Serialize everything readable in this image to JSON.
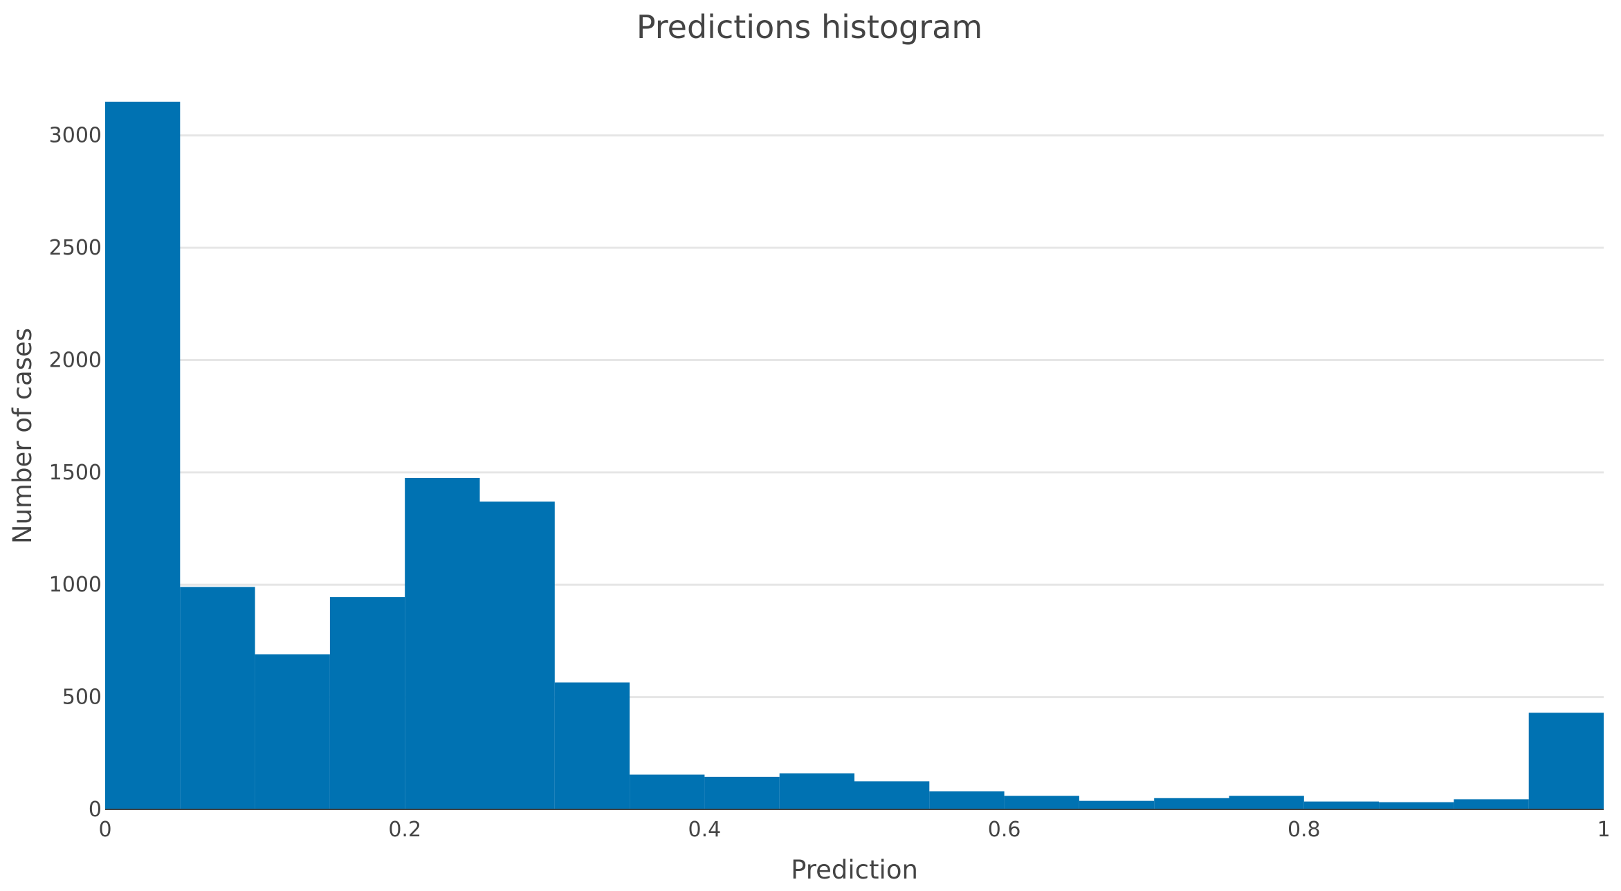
{
  "chart_data": {
    "type": "bar",
    "title": "Predictions histogram",
    "xlabel": "Prediction",
    "ylabel": "Number of cases",
    "xlim": [
      0,
      1
    ],
    "ylim": [
      0,
      3150
    ],
    "bin_width": 0.05,
    "bins": [
      {
        "x0": 0.0,
        "x1": 0.05,
        "value": 3150
      },
      {
        "x0": 0.05,
        "x1": 0.1,
        "value": 990
      },
      {
        "x0": 0.1,
        "x1": 0.15,
        "value": 690
      },
      {
        "x0": 0.15,
        "x1": 0.2,
        "value": 945
      },
      {
        "x0": 0.2,
        "x1": 0.25,
        "value": 1475
      },
      {
        "x0": 0.25,
        "x1": 0.3,
        "value": 1370
      },
      {
        "x0": 0.3,
        "x1": 0.35,
        "value": 565
      },
      {
        "x0": 0.35,
        "x1": 0.4,
        "value": 155
      },
      {
        "x0": 0.4,
        "x1": 0.45,
        "value": 145
      },
      {
        "x0": 0.45,
        "x1": 0.5,
        "value": 160
      },
      {
        "x0": 0.5,
        "x1": 0.55,
        "value": 125
      },
      {
        "x0": 0.55,
        "x1": 0.6,
        "value": 80
      },
      {
        "x0": 0.6,
        "x1": 0.65,
        "value": 60
      },
      {
        "x0": 0.65,
        "x1": 0.7,
        "value": 38
      },
      {
        "x0": 0.7,
        "x1": 0.75,
        "value": 50
      },
      {
        "x0": 0.75,
        "x1": 0.8,
        "value": 60
      },
      {
        "x0": 0.8,
        "x1": 0.85,
        "value": 35
      },
      {
        "x0": 0.85,
        "x1": 0.9,
        "value": 32
      },
      {
        "x0": 0.9,
        "x1": 0.95,
        "value": 45
      },
      {
        "x0": 0.95,
        "x1": 1.0,
        "value": 430
      }
    ],
    "x_ticks": [
      {
        "value": 0,
        "label": "0"
      },
      {
        "value": 0.2,
        "label": "0.2"
      },
      {
        "value": 0.4,
        "label": "0.4"
      },
      {
        "value": 0.6,
        "label": "0.6"
      },
      {
        "value": 0.8,
        "label": "0.8"
      },
      {
        "value": 1,
        "label": "1"
      }
    ],
    "y_ticks": [
      {
        "value": 0,
        "label": "0"
      },
      {
        "value": 500,
        "label": "500"
      },
      {
        "value": 1000,
        "label": "1000"
      },
      {
        "value": 1500,
        "label": "1500"
      },
      {
        "value": 2000,
        "label": "2000"
      },
      {
        "value": 2500,
        "label": "2500"
      },
      {
        "value": 3000,
        "label": "3000"
      }
    ],
    "grid": true,
    "legend": false,
    "colors": {
      "bar": "#0072b2",
      "grid": "#e6e6e6",
      "text": "#444444"
    }
  }
}
